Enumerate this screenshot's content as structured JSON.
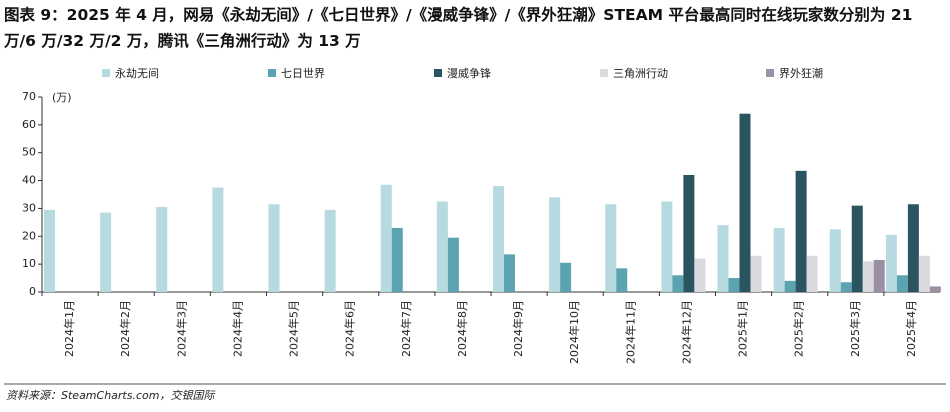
{
  "chart_data": {
    "type": "bar",
    "title": "图表 9：2025 年 4 月，网易《永劫无间》/《七日世界》/《漫威争锋》/《界外狂潮》STEAM 平台最高同时在线玩家数分别为 21 万/6 万/32 万/2 万，腾讯《三角洲行动》为 13 万",
    "y_axis_label": "(万)",
    "source": "资料来源：SteamCharts.com，交银国际",
    "categories": [
      "2024年1月",
      "2024年2月",
      "2024年3月",
      "2024年4月",
      "2024年5月",
      "2024年6月",
      "2024年7月",
      "2024年8月",
      "2024年9月",
      "2024年10月",
      "2024年11月",
      "2024年12月",
      "2025年1月",
      "2025年2月",
      "2025年3月",
      "2025年4月"
    ],
    "series": [
      {
        "name": "永劫无间",
        "color": "#b7d9e0",
        "values": [
          29.5,
          28.5,
          30.5,
          37.5,
          31.5,
          29.5,
          38.5,
          32.5,
          38,
          34,
          31.5,
          32.5,
          24,
          23,
          22.5,
          20.5
        ]
      },
      {
        "name": "七日世界",
        "color": "#5ba3b0",
        "values": [
          null,
          null,
          null,
          null,
          null,
          null,
          23,
          19.5,
          13.5,
          10.5,
          8.5,
          6,
          5,
          4,
          3.5,
          6
        ]
      },
      {
        "name": "漫威争锋",
        "color": "#2a5560",
        "values": [
          null,
          null,
          null,
          null,
          null,
          null,
          null,
          null,
          null,
          null,
          null,
          42,
          64,
          43.5,
          31,
          31.5
        ]
      },
      {
        "name": "三角洲行动",
        "color": "#d9d9de",
        "values": [
          null,
          null,
          null,
          null,
          null,
          null,
          null,
          null,
          null,
          null,
          null,
          12,
          13,
          13,
          11,
          13
        ]
      },
      {
        "name": "界外狂潮",
        "color": "#9b8fa3",
        "values": [
          null,
          null,
          null,
          null,
          null,
          null,
          null,
          null,
          null,
          null,
          null,
          null,
          null,
          null,
          11.5,
          2
        ]
      }
    ],
    "ylim": [
      0,
      70
    ],
    "yticks": [
      0,
      10,
      20,
      30,
      40,
      50,
      60,
      70
    ],
    "grid": false,
    "legend": "top"
  }
}
